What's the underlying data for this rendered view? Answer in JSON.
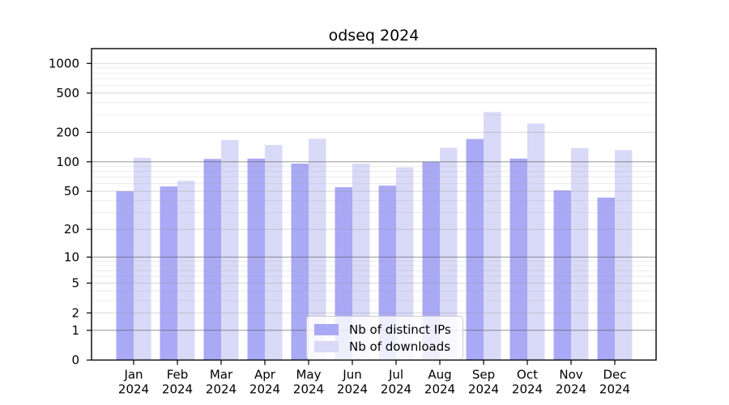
{
  "title": "odseq 2024",
  "chart_data": {
    "type": "bar",
    "title": "odseq 2024",
    "categories": [
      "Jan",
      "Feb",
      "Mar",
      "Apr",
      "May",
      "Jun",
      "Jul",
      "Aug",
      "Sep",
      "Oct",
      "Nov",
      "Dec"
    ],
    "year": "2024",
    "series": [
      {
        "name": "Nb of distinct IPs",
        "color": "#a9a9f5",
        "values": [
          50,
          56,
          107,
          108,
          96,
          55,
          57,
          100,
          171,
          108,
          51,
          43
        ]
      },
      {
        "name": "Nb of downloads",
        "color": "#d9d9f8",
        "values": [
          110,
          64,
          167,
          149,
          172,
          96,
          88,
          139,
          321,
          246,
          138,
          132
        ]
      }
    ],
    "y_ticks": [
      0,
      1,
      2,
      5,
      10,
      20,
      50,
      100,
      200,
      500,
      1000
    ],
    "y_scale": "log10(value+1)",
    "ylim": [
      0,
      1400
    ],
    "xlabel": "",
    "ylabel": "",
    "grid": true,
    "legend_position": "bottom-center-inside",
    "colors": {
      "spine": "#000000",
      "grid_strong": "#8f8f8f",
      "grid_major": "#d8d8d8",
      "grid_minor": "#ebebeb"
    }
  }
}
